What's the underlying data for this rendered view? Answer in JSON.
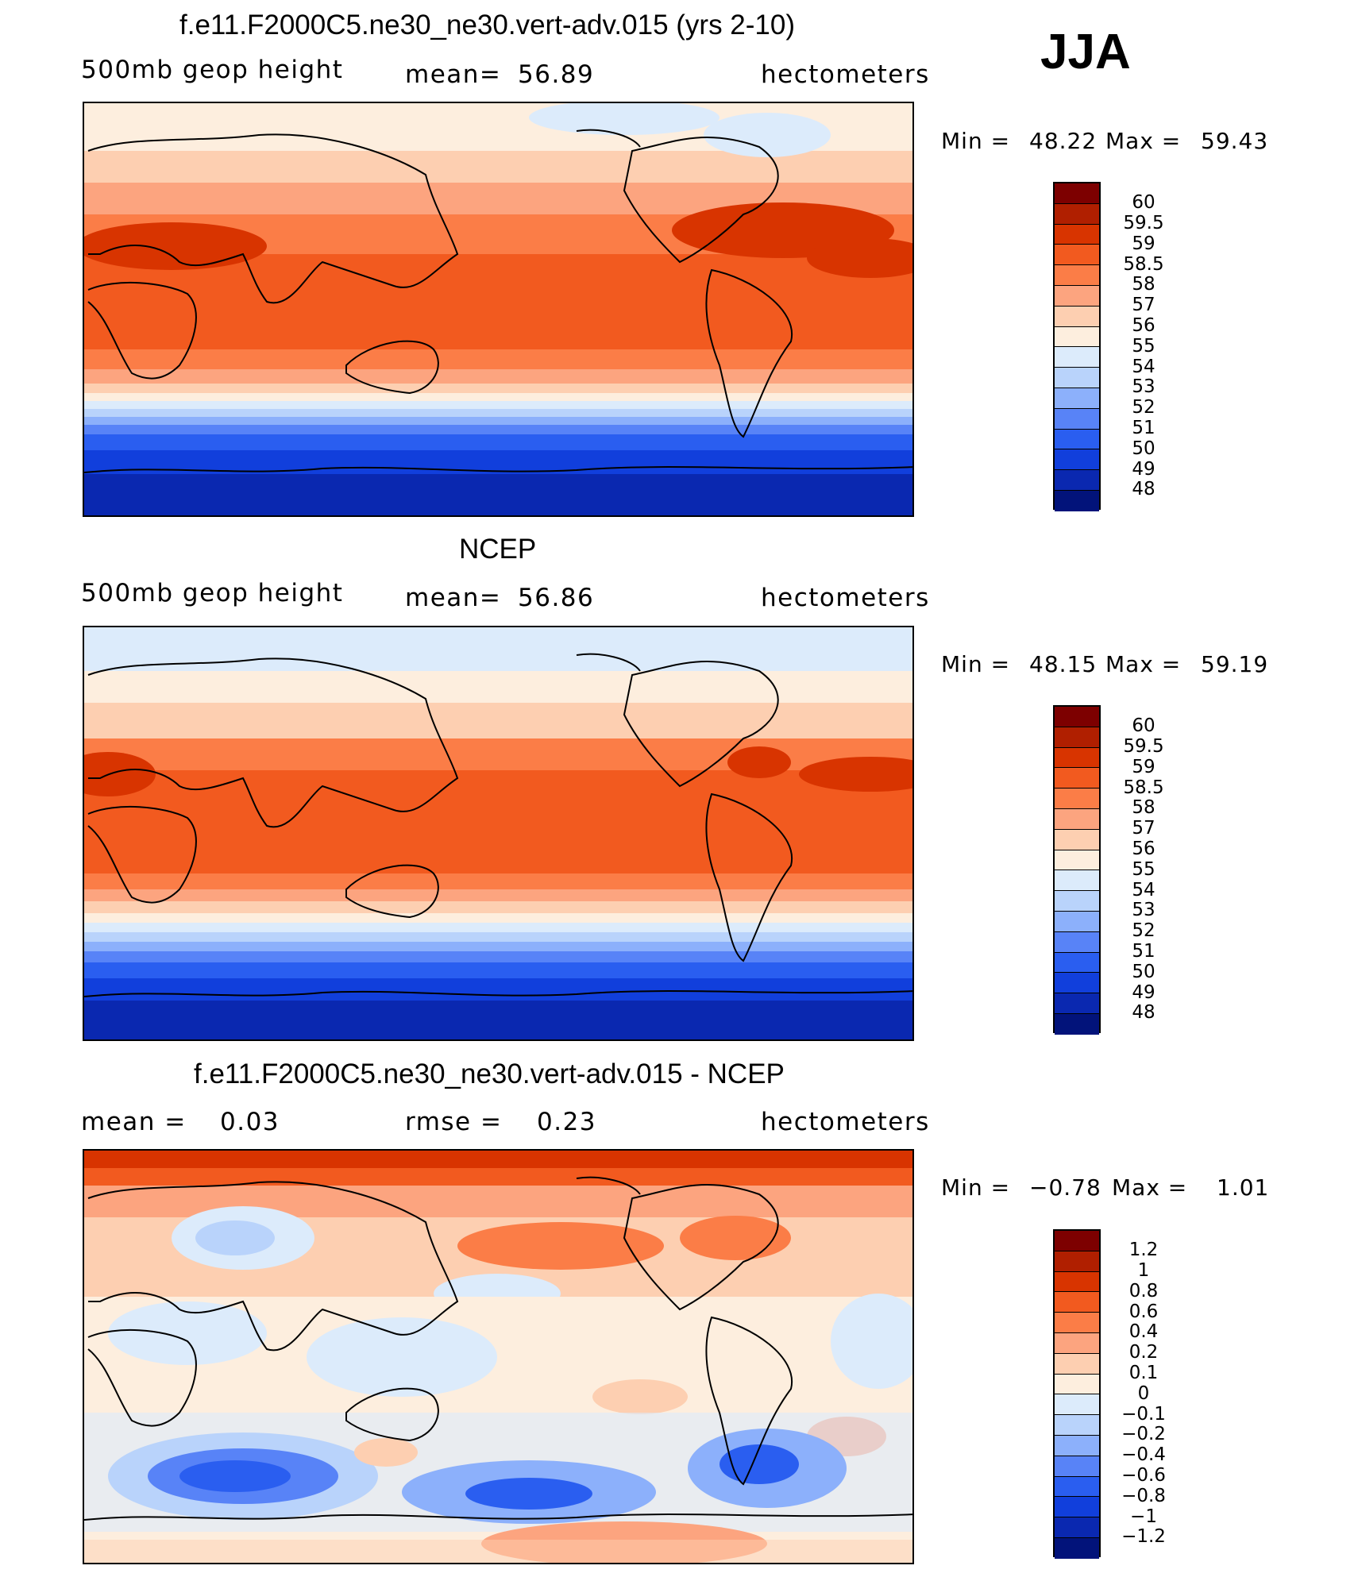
{
  "season": "JJA",
  "chart_data": [
    {
      "type": "heatmap",
      "title": "f.e11.F2000C5.ne30_ne30.vert-adv.015 (yrs 2-10)",
      "left_label": "500mb geop height",
      "center_label": "mean=",
      "center_value": "56.89",
      "units": "hectometers",
      "min_label": "Min =",
      "min": "48.22",
      "max_label": "Max =",
      "max": "59.43",
      "levels": [
        "60",
        "59.5",
        "59",
        "58.5",
        "58",
        "57",
        "56",
        "55",
        "54",
        "53",
        "52",
        "51",
        "50",
        "49",
        "48"
      ],
      "colors": [
        "#7d0000",
        "#b01f00",
        "#d83400",
        "#f25a1f",
        "#fb7d47",
        "#fca47f",
        "#fdcfb1",
        "#fdeede",
        "#dcebfb",
        "#b9d3fb",
        "#8cb0fb",
        "#5883f7",
        "#2a5ef0",
        "#113fdc",
        "#0a28b0",
        "#02137a"
      ]
    },
    {
      "type": "heatmap",
      "title": "NCEP",
      "left_label": "500mb geop height",
      "center_label": "mean=",
      "center_value": "56.86",
      "units": "hectometers",
      "min_label": "Min =",
      "min": "48.15",
      "max_label": "Max =",
      "max": "59.19",
      "levels": [
        "60",
        "59.5",
        "59",
        "58.5",
        "58",
        "57",
        "56",
        "55",
        "54",
        "53",
        "52",
        "51",
        "50",
        "49",
        "48"
      ],
      "colors": [
        "#7d0000",
        "#b01f00",
        "#d83400",
        "#f25a1f",
        "#fb7d47",
        "#fca47f",
        "#fdcfb1",
        "#fdeede",
        "#dcebfb",
        "#b9d3fb",
        "#8cb0fb",
        "#5883f7",
        "#2a5ef0",
        "#113fdc",
        "#0a28b0",
        "#02137a"
      ]
    },
    {
      "type": "heatmap",
      "title": "f.e11.F2000C5.ne30_ne30.vert-adv.015 - NCEP",
      "left_label": "mean =",
      "left_value": "0.03",
      "center_label": "rmse =",
      "center_value": "0.23",
      "units": "hectometers",
      "min_label": "Min =",
      "min": "−0.78",
      "max_label": "Max =",
      "max": "1.01",
      "levels": [
        "1.2",
        "1",
        "0.8",
        "0.6",
        "0.4",
        "0.2",
        "0.1",
        "0",
        "−0.1",
        "−0.2",
        "−0.4",
        "−0.6",
        "−0.8",
        "−1",
        "−1.2"
      ],
      "colors": [
        "#7d0000",
        "#b01f00",
        "#d83400",
        "#f25a1f",
        "#fb7d47",
        "#fca47f",
        "#fdcfb1",
        "#fdeede",
        "#dcebfb",
        "#b9d3fb",
        "#8cb0fb",
        "#5883f7",
        "#2a5ef0",
        "#113fdc",
        "#0a28b0",
        "#02137a"
      ]
    }
  ]
}
